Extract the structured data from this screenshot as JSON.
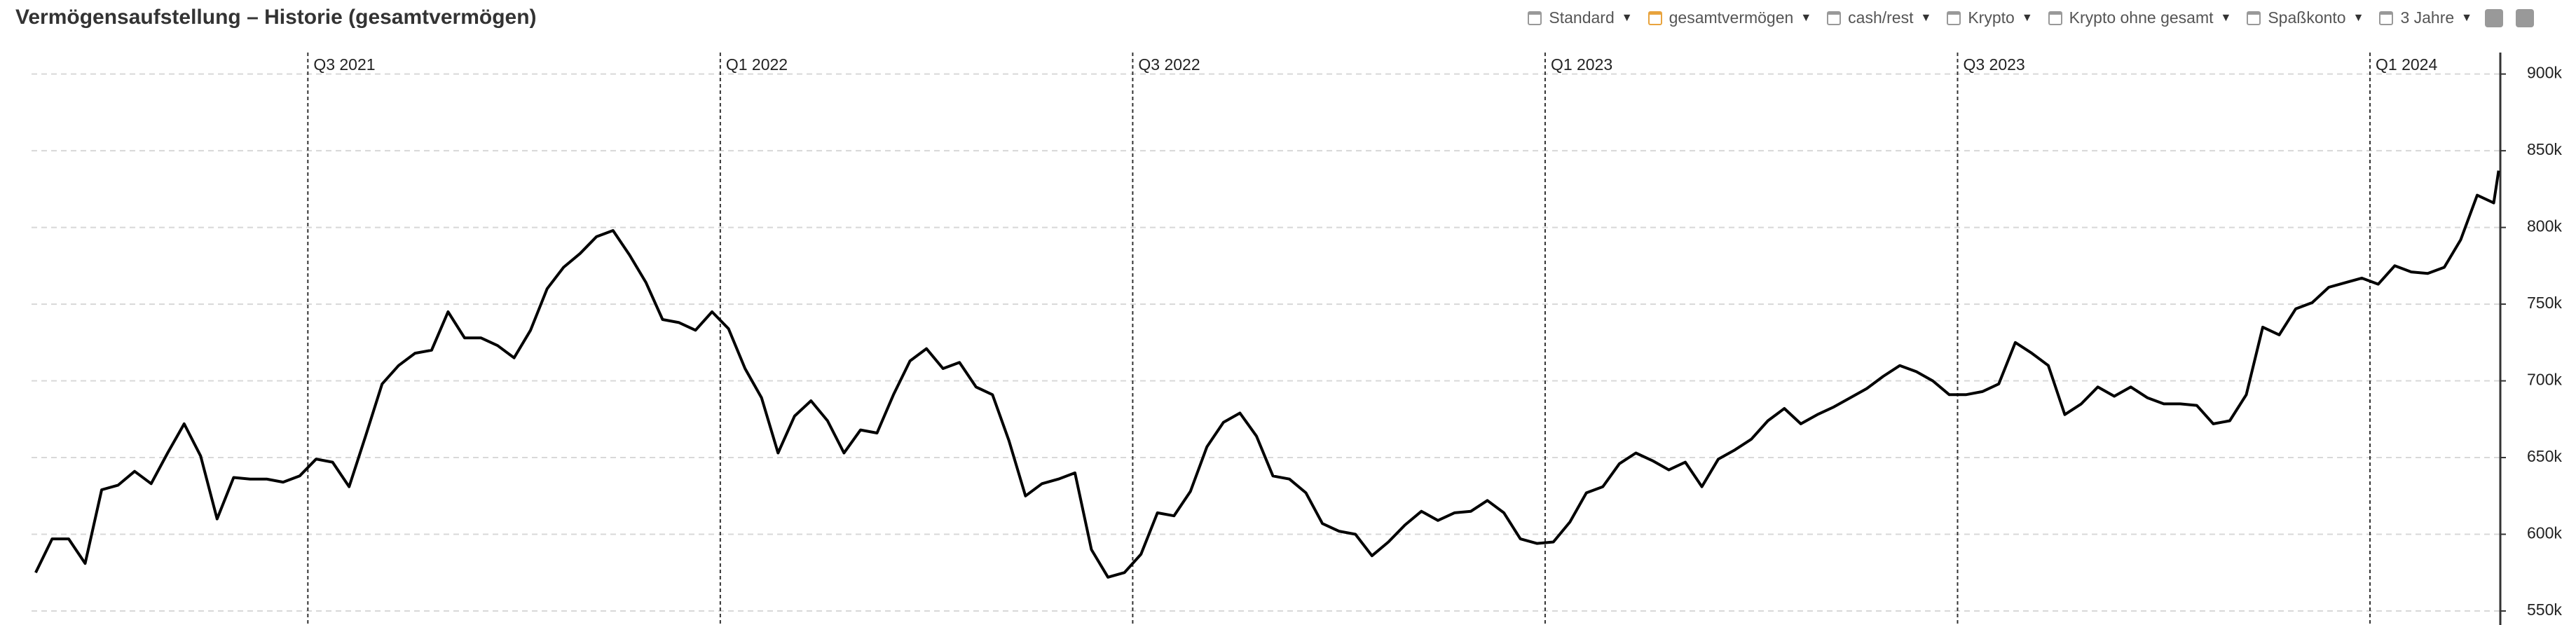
{
  "title": "Vermögensaufstellung – Historie (gesamtvermögen)",
  "toolbar": {
    "items": [
      "Standard",
      "gesamtvermögen",
      "cash/rest",
      "Krypto",
      "Krypto ohne gesamt",
      "Spaßkonto"
    ],
    "range": "3 Jahre"
  },
  "chart_data": {
    "type": "line",
    "color": "#000000",
    "grid": true,
    "xlim": [
      2021.165,
      2024.158
    ],
    "ylim": [
      543.6,
      914
    ],
    "xticks": [
      {
        "value": 2021.5,
        "label": "Q3 2021"
      },
      {
        "value": 2022.0,
        "label": "Q1 2022"
      },
      {
        "value": 2022.5,
        "label": "Q3 2022"
      },
      {
        "value": 2023.0,
        "label": "Q1 2023"
      },
      {
        "value": 2023.5,
        "label": "Q3 2023"
      },
      {
        "value": 2024.0,
        "label": "Q1 2024"
      }
    ],
    "yticks": [
      {
        "value": 550,
        "label": "550k"
      },
      {
        "value": 600,
        "label": "600k"
      },
      {
        "value": 650,
        "label": "650k"
      },
      {
        "value": 700,
        "label": "700k"
      },
      {
        "value": 750,
        "label": "750k"
      },
      {
        "value": 800,
        "label": "800k"
      },
      {
        "value": 850,
        "label": "850k"
      },
      {
        "value": 900,
        "label": "900k"
      }
    ],
    "x": [
      2021.17,
      2021.19,
      2021.21,
      2021.23,
      2021.25,
      2021.27,
      2021.29,
      2021.31,
      2021.33,
      2021.35,
      2021.37,
      2021.39,
      2021.41,
      2021.43,
      2021.45,
      2021.47,
      2021.49,
      2021.51,
      2021.53,
      2021.55,
      2021.57,
      2021.59,
      2021.61,
      2021.63,
      2021.65,
      2021.67,
      2021.69,
      2021.71,
      2021.73,
      2021.75,
      2021.77,
      2021.79,
      2021.81,
      2021.83,
      2021.85,
      2021.87,
      2021.89,
      2021.91,
      2021.93,
      2021.95,
      2021.97,
      2021.99,
      2022.01,
      2022.03,
      2022.05,
      2022.07,
      2022.09,
      2022.11,
      2022.13,
      2022.15,
      2022.17,
      2022.19,
      2022.21,
      2022.23,
      2022.25,
      2022.27,
      2022.29,
      2022.31,
      2022.33,
      2022.35,
      2022.37,
      2022.39,
      2022.41,
      2022.43,
      2022.45,
      2022.47,
      2022.49,
      2022.51,
      2022.53,
      2022.55,
      2022.57,
      2022.59,
      2022.61,
      2022.63,
      2022.65,
      2022.67,
      2022.69,
      2022.71,
      2022.73,
      2022.75,
      2022.77,
      2022.79,
      2022.81,
      2022.83,
      2022.85,
      2022.87,
      2022.89,
      2022.91,
      2022.93,
      2022.95,
      2022.97,
      2022.99,
      2023.01,
      2023.03,
      2023.05,
      2023.07,
      2023.09,
      2023.11,
      2023.13,
      2023.15,
      2023.17,
      2023.19,
      2023.21,
      2023.23,
      2023.25,
      2023.27,
      2023.29,
      2023.31,
      2023.33,
      2023.35,
      2023.37,
      2023.39,
      2023.41,
      2023.43,
      2023.45,
      2023.47,
      2023.49,
      2023.51,
      2023.53,
      2023.55,
      2023.57,
      2023.59,
      2023.61,
      2023.63,
      2023.65,
      2023.67,
      2023.69,
      2023.71,
      2023.73,
      2023.75,
      2023.77,
      2023.79,
      2023.81,
      2023.83,
      2023.85,
      2023.87,
      2023.89,
      2023.91,
      2023.93,
      2023.95,
      2023.97,
      2023.99,
      2024.01,
      2024.03,
      2024.05,
      2024.07,
      2024.09,
      2024.11,
      2024.13,
      2024.15,
      2024.156
    ],
    "values": [
      575,
      597,
      597,
      581,
      629,
      632,
      641,
      633,
      653,
      672,
      651,
      610,
      637,
      636,
      636,
      634,
      638,
      649,
      647,
      631,
      664,
      698,
      710,
      718,
      720,
      745,
      728,
      728,
      723,
      715,
      733,
      760,
      774,
      783,
      794,
      798,
      782,
      764,
      740,
      738,
      733,
      745,
      734,
      708,
      689,
      653,
      677,
      687,
      674,
      653,
      668,
      666,
      691,
      713,
      721,
      708,
      712,
      696,
      691,
      661,
      625,
      633,
      636,
      640,
      590,
      572,
      575,
      587,
      614,
      612,
      628,
      657,
      673,
      679,
      664,
      638,
      636,
      627,
      607,
      602,
      600,
      586,
      595,
      606,
      615,
      609,
      614,
      615,
      622,
      614,
      597,
      594,
      595,
      608,
      627,
      631,
      646,
      653,
      648,
      642,
      647,
      631,
      649,
      655,
      662,
      674,
      682,
      672,
      678,
      683,
      689,
      695,
      703,
      710,
      706,
      700,
      691,
      691,
      693,
      698,
      725,
      718,
      710,
      678,
      685,
      696,
      690,
      696,
      689,
      685,
      685,
      684,
      672,
      674,
      691,
      735,
      730,
      747,
      751,
      761,
      764,
      767,
      763,
      775,
      771,
      770,
      774,
      792,
      821,
      816,
      837
    ]
  }
}
